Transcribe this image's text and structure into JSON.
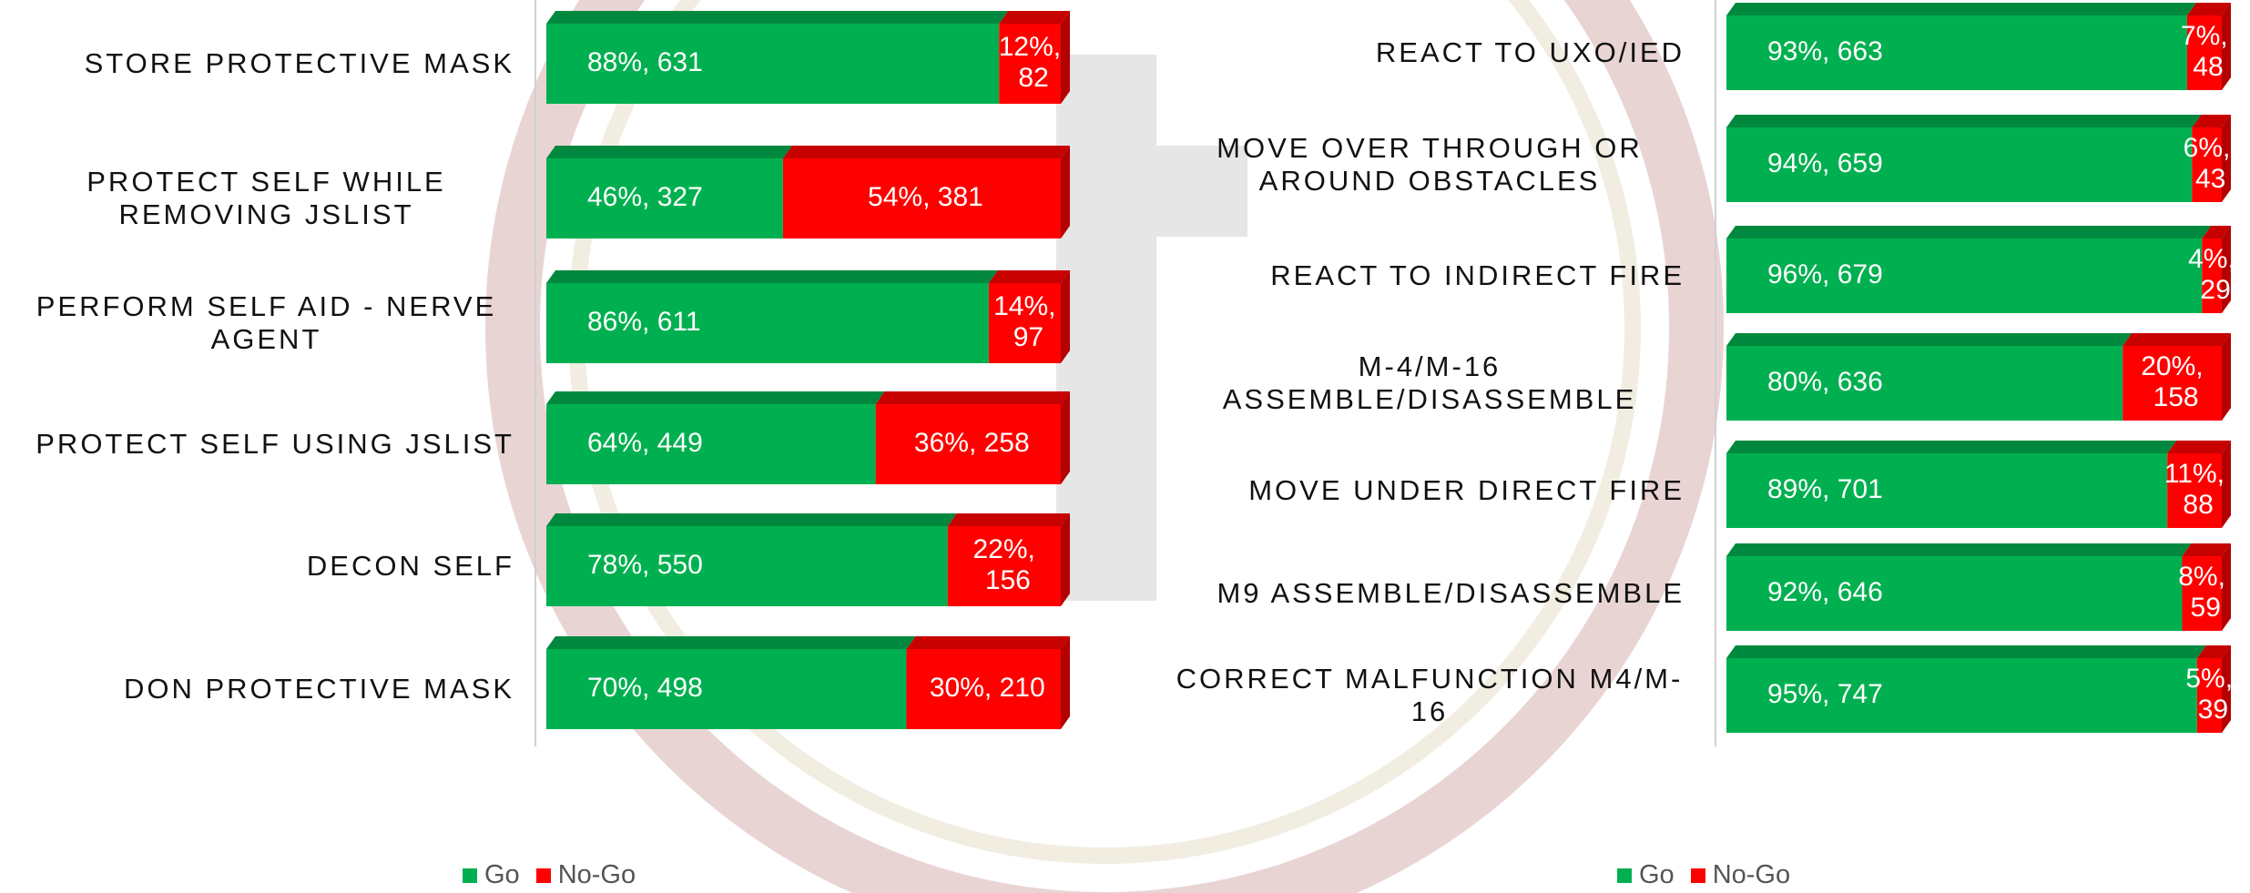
{
  "chart_data": [
    {
      "type": "bar",
      "stacked": true,
      "orientation": "horizontal",
      "xlim": [
        0,
        100
      ],
      "legend": "bottom",
      "categories": [
        "STORE PROTECTIVE MASK",
        "PROTECT SELF WHILE REMOVING JSLIST",
        "PERFORM SELF AID - NERVE AGENT",
        "PROTECT SELF USING JSLIST",
        "DECON SELF",
        "DON PROTECTIVE MASK"
      ],
      "series": [
        {
          "name": "Go",
          "color": "#00b050",
          "values": [
            88,
            46,
            86,
            64,
            78,
            70
          ],
          "value_labels": [
            "88%, 631",
            "46%, 327",
            "86%, 611",
            "64%, 449",
            "78%, 550",
            "70%, 498"
          ]
        },
        {
          "name": "No-Go",
          "color": "#ff0000",
          "values": [
            12,
            54,
            14,
            36,
            22,
            30
          ],
          "value_labels": [
            "12%, 82",
            "54%, 381",
            "14%, 97",
            "36%, 258",
            "22%, 156",
            "30%, 210"
          ]
        }
      ]
    },
    {
      "type": "bar",
      "stacked": true,
      "orientation": "horizontal",
      "xlim": [
        0,
        100
      ],
      "legend": "bottom",
      "categories": [
        "REACT TO UXO/IED",
        "MOVE OVER THROUGH OR AROUND OBSTACLES",
        "REACT TO INDIRECT FIRE",
        "M-4/M-16 ASSEMBLE/DISASSEMBLE",
        "MOVE UNDER DIRECT FIRE",
        "M9 ASSEMBLE/DISASSEMBLE",
        "CORRECT MALFUNCTION M4/M-16"
      ],
      "series": [
        {
          "name": "Go",
          "color": "#00b050",
          "values": [
            93,
            94,
            96,
            80,
            89,
            92,
            95
          ],
          "value_labels": [
            "93%, 663",
            "94%, 659",
            "96%, 679",
            "80%, 636",
            "89%, 701",
            "92%, 646",
            "95%, 747"
          ]
        },
        {
          "name": "No-Go",
          "color": "#ff0000",
          "values": [
            7,
            6,
            4,
            20,
            11,
            8,
            5
          ],
          "value_labels": [
            "7%, 48",
            "6%, 43",
            "4%, 29",
            "20%, 158",
            "11%, 88",
            "8%, 59",
            "5%, 39"
          ]
        }
      ]
    }
  ]
}
